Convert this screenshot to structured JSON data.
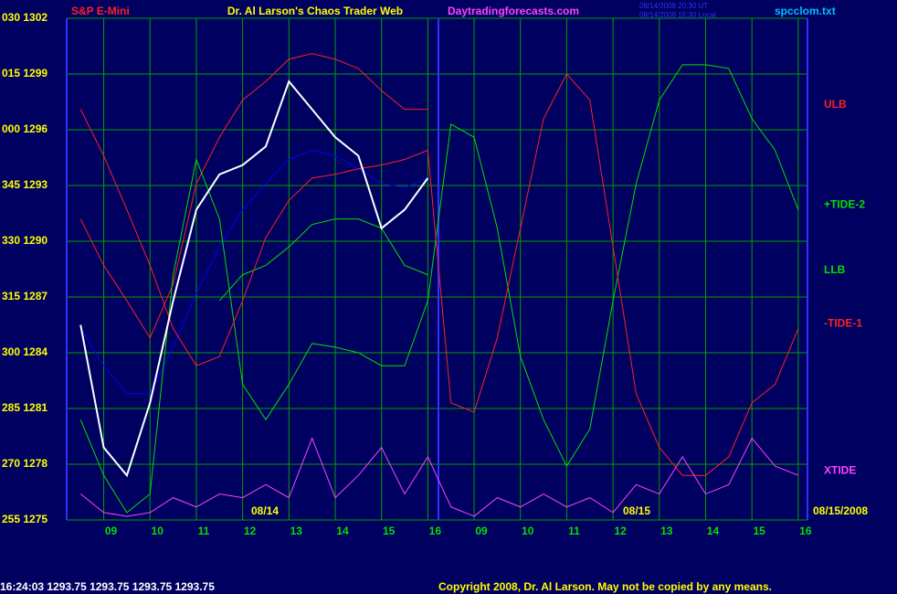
{
  "chart_data": {
    "type": "line",
    "header": {
      "symbol": "S&P E-Mini",
      "title": "Dr. Al Larson's Chaos Trader Web",
      "site": "Daytradingforecasts.com",
      "stamp1": "08/14/2008 20:30 UT",
      "stamp2": "08/14/2008 15:30 Local",
      "file": "spcclom.txt"
    },
    "annotations": [
      "08/14",
      "08/15",
      "08/15/2008"
    ],
    "footer": {
      "quote": "16:24:03  1293.75 1293.75 1293.75 1293.75",
      "copyright": "Copyright 2008, Dr. Al Larson. May not be copied by any means."
    },
    "xlim": [
      -0.8,
      15.2
    ],
    "xticks": [
      {
        "value": 0,
        "label": "09"
      },
      {
        "value": 1,
        "label": "10"
      },
      {
        "value": 2,
        "label": "11"
      },
      {
        "value": 3,
        "label": "12"
      },
      {
        "value": 4,
        "label": "13"
      },
      {
        "value": 5,
        "label": "14"
      },
      {
        "value": 6,
        "label": "15"
      },
      {
        "value": 7,
        "label": "16"
      },
      {
        "value": 8,
        "label": "09"
      },
      {
        "value": 9,
        "label": "10"
      },
      {
        "value": 10,
        "label": "11"
      },
      {
        "value": 11,
        "label": "12"
      },
      {
        "value": 12,
        "label": "13"
      },
      {
        "value": 13,
        "label": "14"
      },
      {
        "value": 14,
        "label": "15"
      },
      {
        "value": 15,
        "label": "16"
      }
    ],
    "ylim": [
      1275,
      1302
    ],
    "yticks": [
      {
        "value": 1302,
        "label": "030 1302"
      },
      {
        "value": 1299,
        "label": "015 1299"
      },
      {
        "value": 1296,
        "label": "000 1296"
      },
      {
        "value": 1293,
        "label": "345 1293"
      },
      {
        "value": 1290,
        "label": "330 1290"
      },
      {
        "value": 1287,
        "label": "315 1287"
      },
      {
        "value": 1284,
        "label": "300 1284"
      },
      {
        "value": 1281,
        "label": "285 1281"
      },
      {
        "value": 1278,
        "label": "270 1278"
      },
      {
        "value": 1275,
        "label": "255 1275"
      }
    ],
    "grid": true,
    "x": [
      -0.5,
      0,
      0.5,
      1,
      1.5,
      2,
      2.5,
      3,
      3.5,
      4,
      4.5,
      5,
      5.5,
      6,
      6.5,
      7,
      7.5,
      8,
      8.5,
      9,
      9.5,
      10,
      10.5,
      11,
      11.5,
      12,
      12.5,
      13,
      13.5,
      14,
      14.5,
      15
    ],
    "series": [
      {
        "color": "#0000ff",
        "values": [
          1285.3,
          1283.3,
          1281.8,
          1281.8,
          1284.3,
          1287.2,
          1289.7,
          1291.7,
          1293.1,
          1294.4,
          1294.9,
          1294.6,
          1293.9,
          1293.1,
          1292.9,
          1293.4,
          null,
          null,
          null,
          null,
          null,
          null,
          null,
          null,
          null,
          null,
          null,
          null,
          null,
          null,
          null,
          null
        ]
      },
      {
        "name": "ULB",
        "color": "#ff2020",
        "values": [
          1291.2,
          1288.7,
          1286.8,
          1284.8,
          1287.7,
          1293.1,
          1295.6,
          1297.6,
          1298.6,
          1299.8,
          1300.1,
          1299.8,
          1299.3,
          1298.1,
          1297.1,
          1297.1,
          null,
          null,
          null,
          null,
          null,
          null,
          null,
          null,
          null,
          null,
          null,
          null,
          null,
          null,
          null,
          null
        ]
      },
      {
        "name": "+TIDE-2",
        "color": "#00e000",
        "values": [
          1280.4,
          1277.4,
          1275.4,
          1276.4,
          1288.2,
          1294.4,
          1291.2,
          1282.3,
          1280.4,
          1282.3,
          1284.5,
          1284.3,
          1284.0,
          1283.3,
          1283.3,
          1286.8,
          1296.3,
          1295.6,
          1290.7,
          1283.8,
          1280.4,
          1277.9,
          1279.9,
          1286.8,
          1293.1,
          1297.6,
          1299.5,
          1299.5,
          1299.3,
          1296.6,
          1294.9,
          1291.7
        ]
      },
      {
        "name": "LLB",
        "color": "#00e000",
        "values": [
          null,
          null,
          null,
          null,
          null,
          null,
          1286.8,
          1288.2,
          1288.7,
          1289.7,
          1290.9,
          1291.2,
          1291.2,
          1290.7,
          1288.7,
          1288.2,
          null,
          null,
          null,
          null,
          null,
          null,
          null,
          null,
          null,
          null,
          null,
          null,
          null,
          null,
          null,
          null
        ]
      },
      {
        "name": "-TIDE-1",
        "color": "#ff2020",
        "values": [
          1297.1,
          1294.6,
          1291.7,
          1288.7,
          1285.3,
          1283.3,
          1283.8,
          1286.8,
          1290.2,
          1292.2,
          1293.4,
          1293.6,
          1293.9,
          1294.1,
          1294.4,
          1294.9,
          1281.3,
          1280.8,
          1284.8,
          1290.7,
          1296.6,
          1299.0,
          1297.6,
          1289.7,
          1281.8,
          1278.9,
          1277.4,
          1277.4,
          1278.4,
          1281.3,
          1282.3,
          1285.3
        ]
      },
      {
        "name": "XTIDE",
        "color": "#ff40ff",
        "values": [
          1276.4,
          1275.4,
          1275.2,
          1275.4,
          1276.2,
          1275.7,
          1276.4,
          1276.2,
          1276.9,
          1276.2,
          1279.4,
          1276.2,
          1277.4,
          1278.9,
          1276.4,
          1278.4,
          1275.7,
          1275.2,
          1276.2,
          1275.7,
          1276.4,
          1275.7,
          1276.2,
          1275.4,
          1276.9,
          1276.4,
          1278.4,
          1276.4,
          1276.9,
          1279.4,
          1277.9,
          1277.4
        ]
      },
      {
        "color": "#ffffff",
        "values": [
          1285.5,
          1278.9,
          1277.4,
          1281.3,
          1286.8,
          1291.7,
          1293.6,
          1294.1,
          1295.1,
          1298.6,
          1297.1,
          1295.6,
          1294.6,
          1290.7,
          1291.7,
          1293.4,
          null,
          null,
          null,
          null,
          null,
          null,
          null,
          null,
          null,
          null,
          null,
          null,
          null,
          null,
          null,
          null
        ]
      }
    ]
  }
}
